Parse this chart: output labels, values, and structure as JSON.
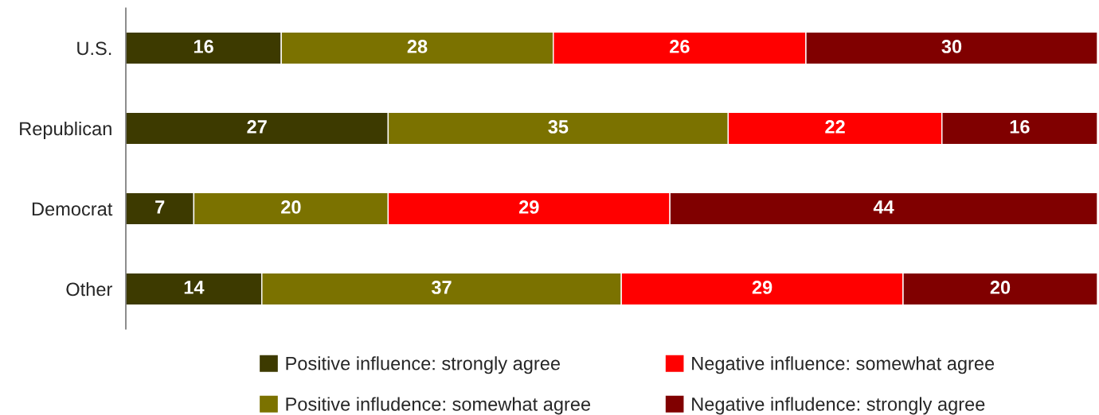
{
  "chart_data": {
    "type": "bar",
    "orientation": "horizontal",
    "stacked": true,
    "data_labels": true,
    "categories": [
      "U.S.",
      "Republican",
      "Democrat",
      "Other"
    ],
    "xlim": [
      0,
      100
    ],
    "tick_labels": "y",
    "grid": false,
    "legend": "bottom",
    "series": [
      {
        "name": "Positive influence: strongly agree",
        "color": "#3d3a00",
        "values": [
          16,
          27,
          7,
          14
        ]
      },
      {
        "name": "Positive infludence: somewhat agree",
        "color": "#7b7200",
        "values": [
          28,
          35,
          20,
          37
        ]
      },
      {
        "name": "Negative influence: somewhat agree",
        "color": "#ff0000",
        "values": [
          26,
          22,
          29,
          29
        ]
      },
      {
        "name": "Negative infludence: strongly agree",
        "color": "#800000",
        "values": [
          30,
          16,
          44,
          20
        ]
      }
    ]
  }
}
